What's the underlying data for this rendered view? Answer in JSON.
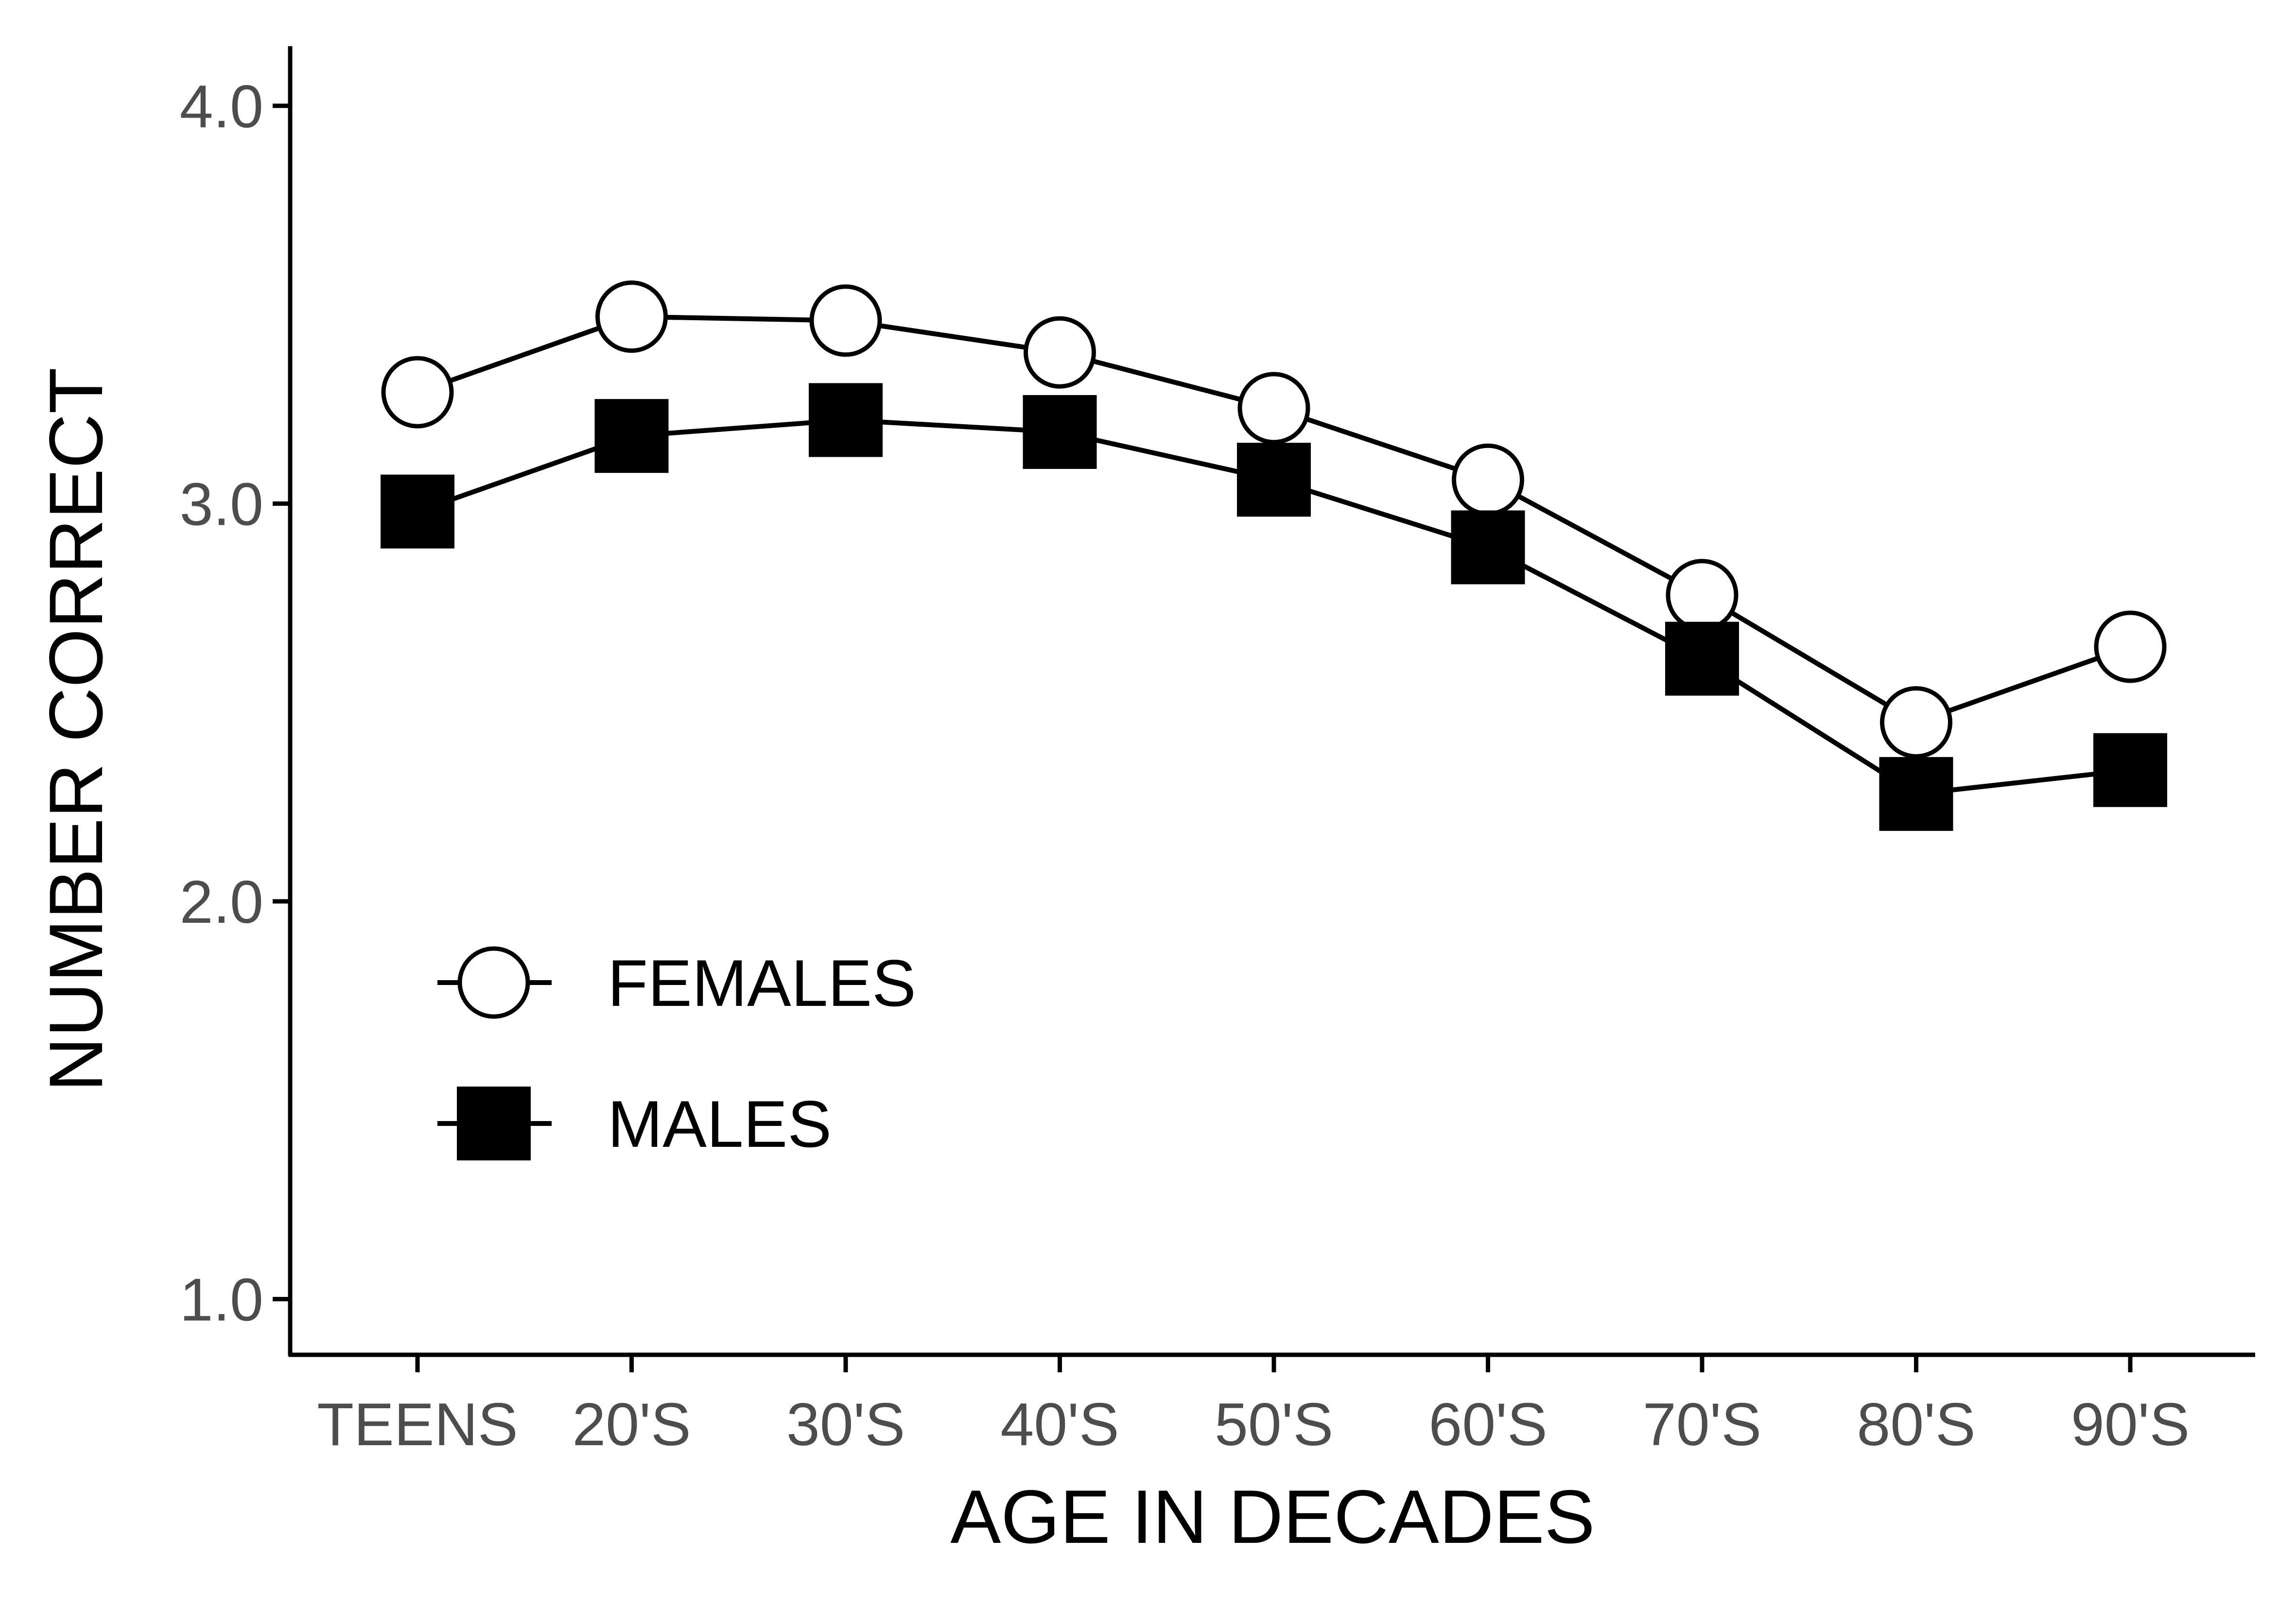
{
  "chart_data": {
    "type": "line",
    "title": "",
    "xlabel": "AGE IN DECADES",
    "ylabel": "NUMBER CORRECT",
    "categories": [
      "TEENS",
      "20'S",
      "30'S",
      "40'S",
      "50'S",
      "60'S",
      "70'S",
      "80'S",
      "90'S"
    ],
    "yticks": [
      "1.0",
      "2.0",
      "3.0",
      "4.0"
    ],
    "ylim": [
      0.86,
      4.15
    ],
    "grid": false,
    "legend_position": "bottom-left",
    "series": [
      {
        "name": "FEMALES",
        "marker": "open-circle",
        "values": [
          3.28,
          3.47,
          3.46,
          3.38,
          3.24,
          3.06,
          2.77,
          2.45,
          2.64
        ]
      },
      {
        "name": "MALES",
        "marker": "filled-square",
        "values": [
          2.98,
          3.17,
          3.21,
          3.18,
          3.06,
          2.89,
          2.61,
          2.27,
          2.33
        ]
      }
    ],
    "colors": {
      "axis": "#000000",
      "tick_text": "#4d4d4d",
      "line": "#000000",
      "marker_fill_open": "#ffffff",
      "marker_fill_solid": "#000000"
    }
  }
}
